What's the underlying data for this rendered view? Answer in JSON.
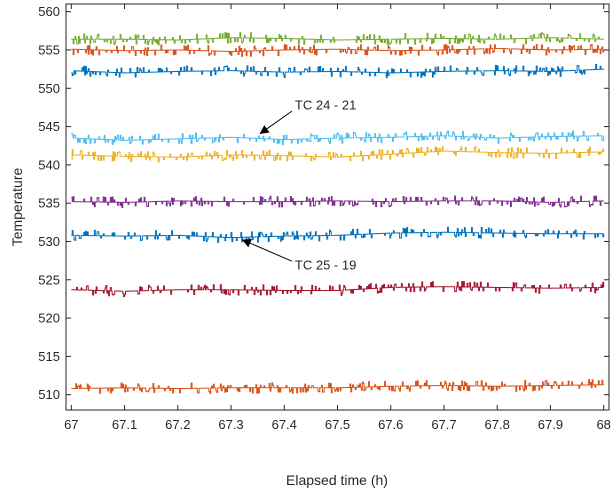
{
  "chart_data": {
    "type": "line",
    "title": "",
    "xlabel": "Elapsed time (h)",
    "ylabel": "Temperature",
    "xlim": [
      66.99,
      68.01
    ],
    "ylim": [
      508,
      561
    ],
    "xticks": [
      67,
      67.1,
      67.2,
      67.3,
      67.4,
      67.5,
      67.6,
      67.7,
      67.8,
      67.9,
      68
    ],
    "xtick_labels": [
      "67",
      "67.1",
      "67.2",
      "67.3",
      "67.4",
      "67.5",
      "67.6",
      "67.7",
      "67.8",
      "67.9",
      "68"
    ],
    "yticks": [
      510,
      515,
      520,
      525,
      530,
      535,
      540,
      545,
      550,
      555,
      560
    ],
    "ytick_labels": [
      "510",
      "515",
      "520",
      "525",
      "530",
      "535",
      "540",
      "545",
      "550",
      "555",
      "560"
    ],
    "grid": false,
    "legend": "none",
    "series": [
      {
        "color": "#77AC30",
        "values": [
          556.4,
          556.4,
          556.3,
          556.6,
          556.5,
          556.3,
          556.4,
          556.5,
          556.4,
          556.6,
          556.4
        ]
      },
      {
        "color": "#D95319",
        "values": [
          555.1,
          554.9,
          555.0,
          554.8,
          555.0,
          555.1,
          554.9,
          555.0,
          555.2,
          555.0,
          555.1
        ]
      },
      {
        "color": "#0072BD",
        "values": [
          552.3,
          552.0,
          552.2,
          552.3,
          552.1,
          552.2,
          552.0,
          552.2,
          552.3,
          552.2,
          552.5
        ]
      },
      {
        "color": "#4DBEEE",
        "values": [
          543.5,
          543.2,
          543.4,
          543.6,
          543.3,
          543.5,
          543.6,
          543.8,
          543.5,
          543.7,
          543.8
        ]
      },
      {
        "color": "#EDB120",
        "values": [
          541.3,
          541.1,
          541.0,
          541.3,
          541.2,
          541.0,
          541.4,
          541.8,
          541.6,
          541.5,
          541.7
        ]
      },
      {
        "color": "#7E2F8E",
        "values": [
          535.2,
          535.1,
          535.3,
          535.2,
          535.2,
          535.3,
          535.2,
          535.3,
          535.3,
          535.1,
          535.3
        ]
      },
      {
        "color": "#0072BD",
        "values": [
          530.8,
          530.7,
          530.8,
          530.5,
          530.7,
          530.8,
          531.1,
          531.2,
          531.1,
          531.0,
          531.0
        ]
      },
      {
        "color": "#A2142F",
        "values": [
          523.7,
          523.5,
          523.7,
          523.7,
          523.6,
          523.6,
          524.0,
          524.1,
          524.0,
          523.9,
          524.0
        ]
      },
      {
        "color": "#D95319",
        "values": [
          510.8,
          510.9,
          510.8,
          510.9,
          510.9,
          510.9,
          511.1,
          511.2,
          511.1,
          511.2,
          511.3
        ]
      }
    ],
    "annotations": [
      {
        "text": "TC 24 - 21",
        "text_x": 67.42,
        "text_y": 547.8,
        "arrow_x": 67.355,
        "arrow_y": 544.1
      },
      {
        "text": "TC 25 - 19",
        "text_x": 67.42,
        "text_y": 526.9,
        "arrow_x": 67.322,
        "arrow_y": 530.2
      }
    ]
  }
}
